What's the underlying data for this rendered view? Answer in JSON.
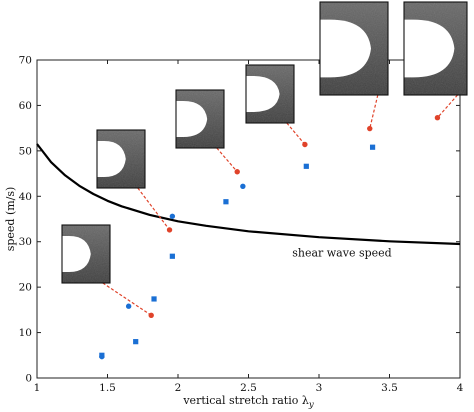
{
  "chart_data": {
    "type": "scatter",
    "xlabel": "vertical stretch ratio λ",
    "xlabel_sub": "y",
    "ylabel": "speed (m/s)",
    "xlim": [
      1,
      4
    ],
    "ylim": [
      0,
      70
    ],
    "xticks": [
      1,
      1.5,
      2,
      2.5,
      3,
      3.5,
      4
    ],
    "xtick_labels": [
      "1",
      "1.5",
      "2",
      "2.5",
      "3",
      "3.5",
      "4"
    ],
    "yticks": [
      0,
      10,
      20,
      30,
      40,
      50,
      60,
      70
    ],
    "ytick_labels": [
      "0",
      "10",
      "20",
      "30",
      "40",
      "50",
      "60",
      "70"
    ],
    "grid": false,
    "series": [
      {
        "marker": "square",
        "color": "#1a6fd4",
        "points": [
          {
            "x": 1.46,
            "y": 5.0
          },
          {
            "x": 1.7,
            "y": 8.0
          },
          {
            "x": 1.83,
            "y": 17.4
          },
          {
            "x": 1.96,
            "y": 26.8
          },
          {
            "x": 2.34,
            "y": 38.8
          },
          {
            "x": 2.91,
            "y": 46.6
          },
          {
            "x": 3.38,
            "y": 50.8
          }
        ]
      },
      {
        "marker": "circle",
        "color": "#1a6fd4",
        "points": [
          {
            "x": 1.46,
            "y": 4.7
          },
          {
            "x": 1.65,
            "y": 15.8
          },
          {
            "x": 1.96,
            "y": 35.6
          },
          {
            "x": 2.46,
            "y": 42.2
          }
        ]
      },
      {
        "marker": "circle",
        "color": "#e0432a",
        "points": [
          {
            "x": 1.81,
            "y": 13.8
          },
          {
            "x": 1.94,
            "y": 32.6
          },
          {
            "x": 2.42,
            "y": 45.4
          },
          {
            "x": 2.9,
            "y": 51.4
          },
          {
            "x": 3.36,
            "y": 54.9
          },
          {
            "x": 3.84,
            "y": 57.3
          }
        ]
      }
    ],
    "curve": {
      "label": "shear wave speed",
      "color": "#000000",
      "points": [
        {
          "x": 1.0,
          "y": 51.5
        },
        {
          "x": 1.1,
          "y": 47.5
        },
        {
          "x": 1.2,
          "y": 44.6
        },
        {
          "x": 1.3,
          "y": 42.3
        },
        {
          "x": 1.4,
          "y": 40.5
        },
        {
          "x": 1.5,
          "y": 39.0
        },
        {
          "x": 1.6,
          "y": 37.8
        },
        {
          "x": 1.8,
          "y": 35.9
        },
        {
          "x": 2.0,
          "y": 34.5
        },
        {
          "x": 2.2,
          "y": 33.5
        },
        {
          "x": 2.5,
          "y": 32.3
        },
        {
          "x": 3.0,
          "y": 31.0
        },
        {
          "x": 3.5,
          "y": 30.1
        },
        {
          "x": 4.0,
          "y": 29.5
        }
      ]
    },
    "insets": [
      {
        "name": "inset-1",
        "anchor": {
          "x": 1.81,
          "y": 13.8
        },
        "color": "#e0432a"
      },
      {
        "name": "inset-2",
        "anchor": {
          "x": 1.94,
          "y": 32.6
        },
        "color": "#e0432a"
      },
      {
        "name": "inset-3",
        "anchor": {
          "x": 2.42,
          "y": 45.4
        },
        "color": "#e0432a"
      },
      {
        "name": "inset-4",
        "anchor": {
          "x": 2.9,
          "y": 51.4
        },
        "color": "#e0432a"
      },
      {
        "name": "inset-5",
        "anchor": {
          "x": 3.36,
          "y": 54.9
        },
        "color": "#e0432a"
      },
      {
        "name": "inset-6",
        "anchor": {
          "x": 3.84,
          "y": 57.3
        },
        "color": "#e0432a"
      }
    ]
  }
}
